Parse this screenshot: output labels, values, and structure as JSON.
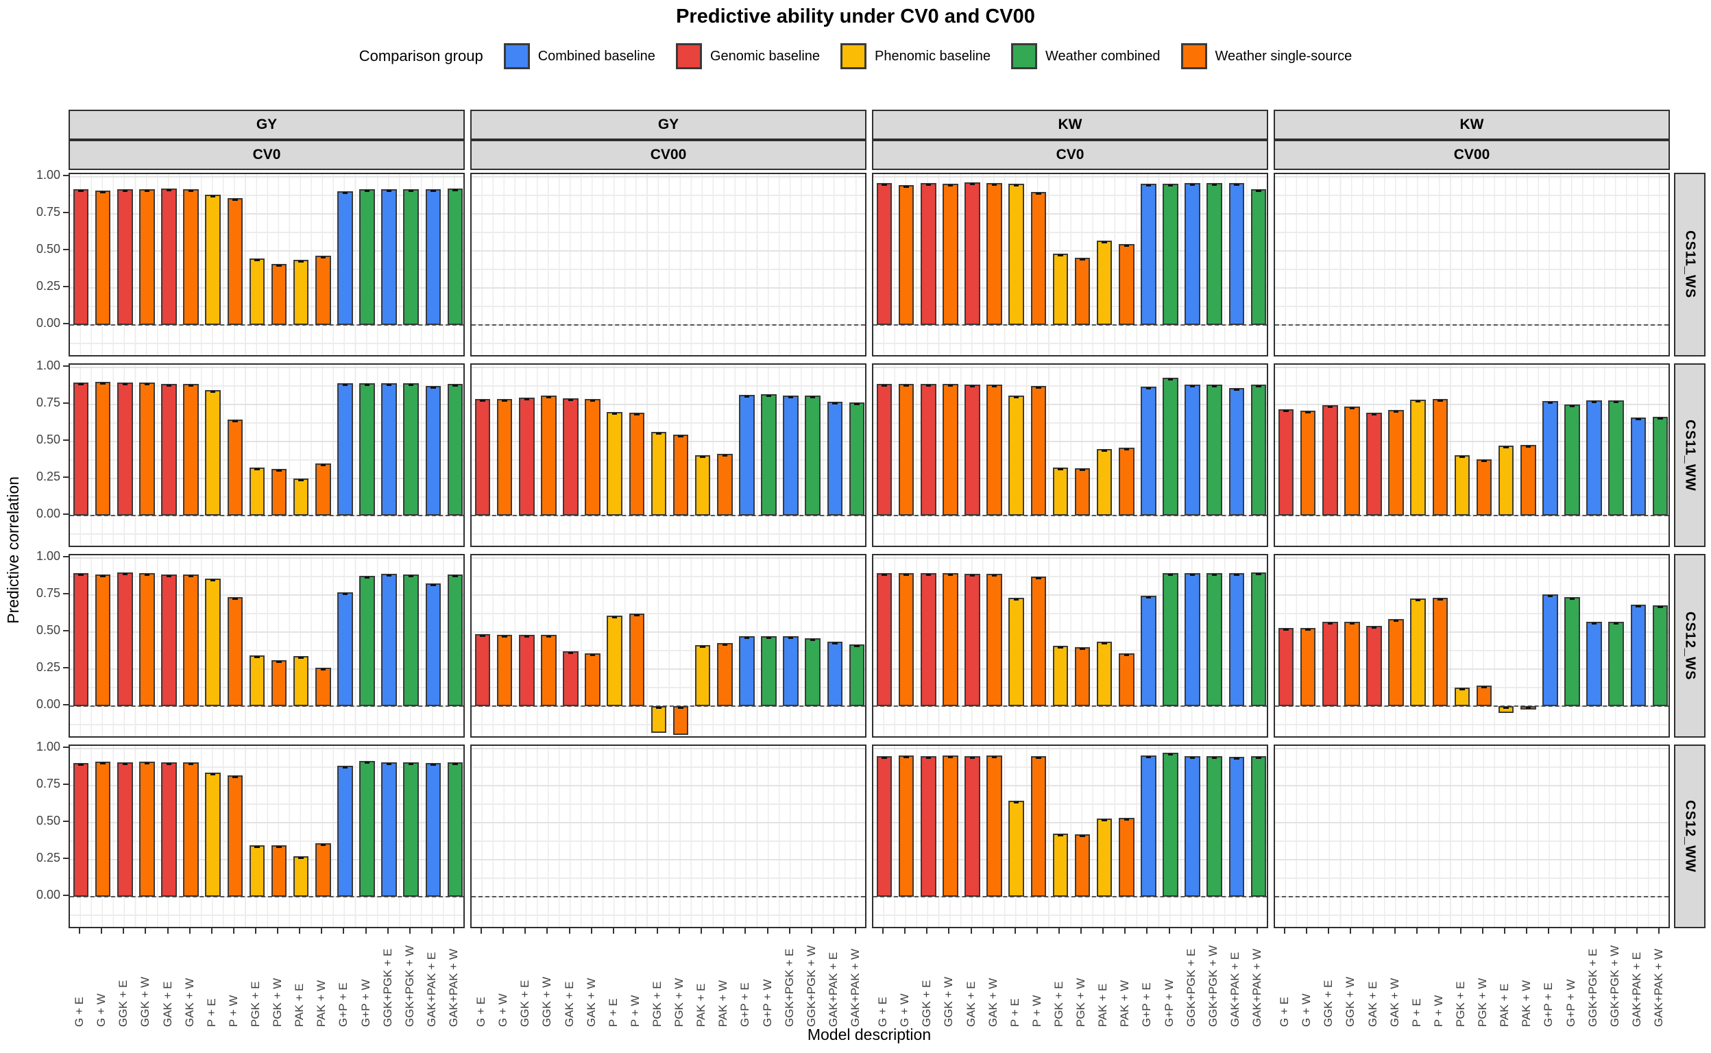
{
  "chart_data": {
    "type": "bar",
    "title": "Predictive ability under CV0 and CV00",
    "ylabel": "Predictive correlation",
    "xlabel": "Model description",
    "ylim": [
      -0.22,
      1.02
    ],
    "yticks": [
      0.0,
      0.25,
      0.5,
      0.75,
      1.0
    ],
    "ytick_labels": [
      "0.00",
      "0.25",
      "0.50",
      "0.75",
      "1.00"
    ],
    "grid": "major and minor, light gray on white",
    "zero_reference_line": "dashed",
    "categories": [
      "G + E",
      "G + W",
      "GGK + E",
      "GGK + W",
      "GAK + E",
      "GAK + W",
      "P + E",
      "P + W",
      "PGK + E",
      "PGK + W",
      "PAK + E",
      "PAK + W",
      "G+P + E",
      "G+P + W",
      "GGK+PGK + E",
      "GGK+PGK + W",
      "GAK+PAK + E",
      "GAK+PAK + W"
    ],
    "bar_group_by_category": [
      "genomic",
      "weather_single",
      "genomic",
      "weather_single",
      "genomic",
      "weather_single",
      "phenomic",
      "weather_single",
      "phenomic",
      "weather_single",
      "phenomic",
      "weather_single",
      "combined",
      "weather_combined",
      "combined",
      "weather_combined",
      "combined",
      "weather_combined"
    ],
    "legend": {
      "title": "Comparison group",
      "position": "top",
      "entries": [
        {
          "key": "combined",
          "label": "Combined baseline",
          "color": "#4285F4"
        },
        {
          "key": "genomic",
          "label": "Genomic baseline",
          "color": "#E8433C"
        },
        {
          "key": "phenomic",
          "label": "Phenomic baseline",
          "color": "#FBBC05"
        },
        {
          "key": "weather_combined",
          "label": "Weather combined",
          "color": "#34A853"
        },
        {
          "key": "weather_single",
          "label": "Weather single-source",
          "color": "#FC7303"
        }
      ]
    },
    "facet_cols": [
      {
        "trait": "GY",
        "cv": "CV0"
      },
      {
        "trait": "GY",
        "cv": "CV00"
      },
      {
        "trait": "KW",
        "cv": "CV0"
      },
      {
        "trait": "KW",
        "cv": "CV00"
      }
    ],
    "facet_rows": [
      "CS11_WS",
      "CS11_WW",
      "CS12_WS",
      "CS12_WW"
    ],
    "panels": [
      {
        "row": "CS11_WS",
        "cells": [
          [
            0.92,
            0.91,
            0.92,
            0.92,
            0.925,
            0.92,
            0.88,
            0.86,
            0.45,
            0.415,
            0.44,
            0.47,
            0.905,
            0.92,
            0.92,
            0.92,
            0.92,
            0.925
          ],
          null,
          [
            0.96,
            0.945,
            0.96,
            0.955,
            0.965,
            0.96,
            0.955,
            0.9,
            0.485,
            0.455,
            0.57,
            0.55,
            0.955,
            0.955,
            0.96,
            0.96,
            0.96,
            0.92
          ],
          null
        ]
      },
      {
        "row": "CS11_WW",
        "cells": [
          [
            0.9,
            0.905,
            0.9,
            0.9,
            0.89,
            0.89,
            0.85,
            0.65,
            0.325,
            0.315,
            0.25,
            0.355,
            0.895,
            0.895,
            0.895,
            0.895,
            0.875,
            0.89
          ],
          [
            0.79,
            0.79,
            0.8,
            0.81,
            0.795,
            0.79,
            0.7,
            0.695,
            0.565,
            0.55,
            0.41,
            0.42,
            0.815,
            0.82,
            0.81,
            0.81,
            0.77,
            0.765
          ],
          [
            0.89,
            0.89,
            0.89,
            0.89,
            0.885,
            0.885,
            0.81,
            0.875,
            0.325,
            0.32,
            0.45,
            0.46,
            0.87,
            0.93,
            0.885,
            0.885,
            0.865,
            0.885
          ],
          [
            0.72,
            0.71,
            0.745,
            0.74,
            0.695,
            0.715,
            0.785,
            0.79,
            0.41,
            0.38,
            0.475,
            0.48,
            0.775,
            0.75,
            0.78,
            0.78,
            0.665,
            0.67
          ]
        ]
      },
      {
        "row": "CS12_WS",
        "cells": [
          [
            0.9,
            0.89,
            0.905,
            0.9,
            0.89,
            0.89,
            0.865,
            0.74,
            0.345,
            0.31,
            0.34,
            0.26,
            0.77,
            0.88,
            0.895,
            0.89,
            0.83,
            0.89
          ],
          [
            0.49,
            0.485,
            0.485,
            0.485,
            0.37,
            0.36,
            0.615,
            0.625,
            -0.18,
            -0.19,
            0.415,
            0.43,
            0.475,
            0.475,
            0.475,
            0.46,
            0.435,
            0.42
          ],
          [
            0.9,
            0.9,
            0.9,
            0.9,
            0.895,
            0.895,
            0.735,
            0.875,
            0.41,
            0.4,
            0.435,
            0.36,
            0.745,
            0.9,
            0.9,
            0.9,
            0.9,
            0.905
          ],
          [
            0.53,
            0.53,
            0.57,
            0.57,
            0.545,
            0.59,
            0.73,
            0.735,
            0.125,
            0.14,
            -0.045,
            -0.02,
            0.755,
            0.74,
            0.57,
            0.57,
            0.685,
            0.68
          ]
        ]
      },
      {
        "row": "CS12_WW",
        "cells": [
          [
            0.905,
            0.915,
            0.91,
            0.915,
            0.91,
            0.91,
            0.84,
            0.82,
            0.35,
            0.35,
            0.275,
            0.365,
            0.885,
            0.92,
            0.91,
            0.91,
            0.905,
            0.91
          ],
          null,
          [
            0.95,
            0.955,
            0.95,
            0.955,
            0.95,
            0.955,
            0.65,
            0.95,
            0.43,
            0.425,
            0.53,
            0.535,
            0.955,
            0.975,
            0.95,
            0.95,
            0.945,
            0.95
          ],
          null
        ]
      }
    ]
  }
}
